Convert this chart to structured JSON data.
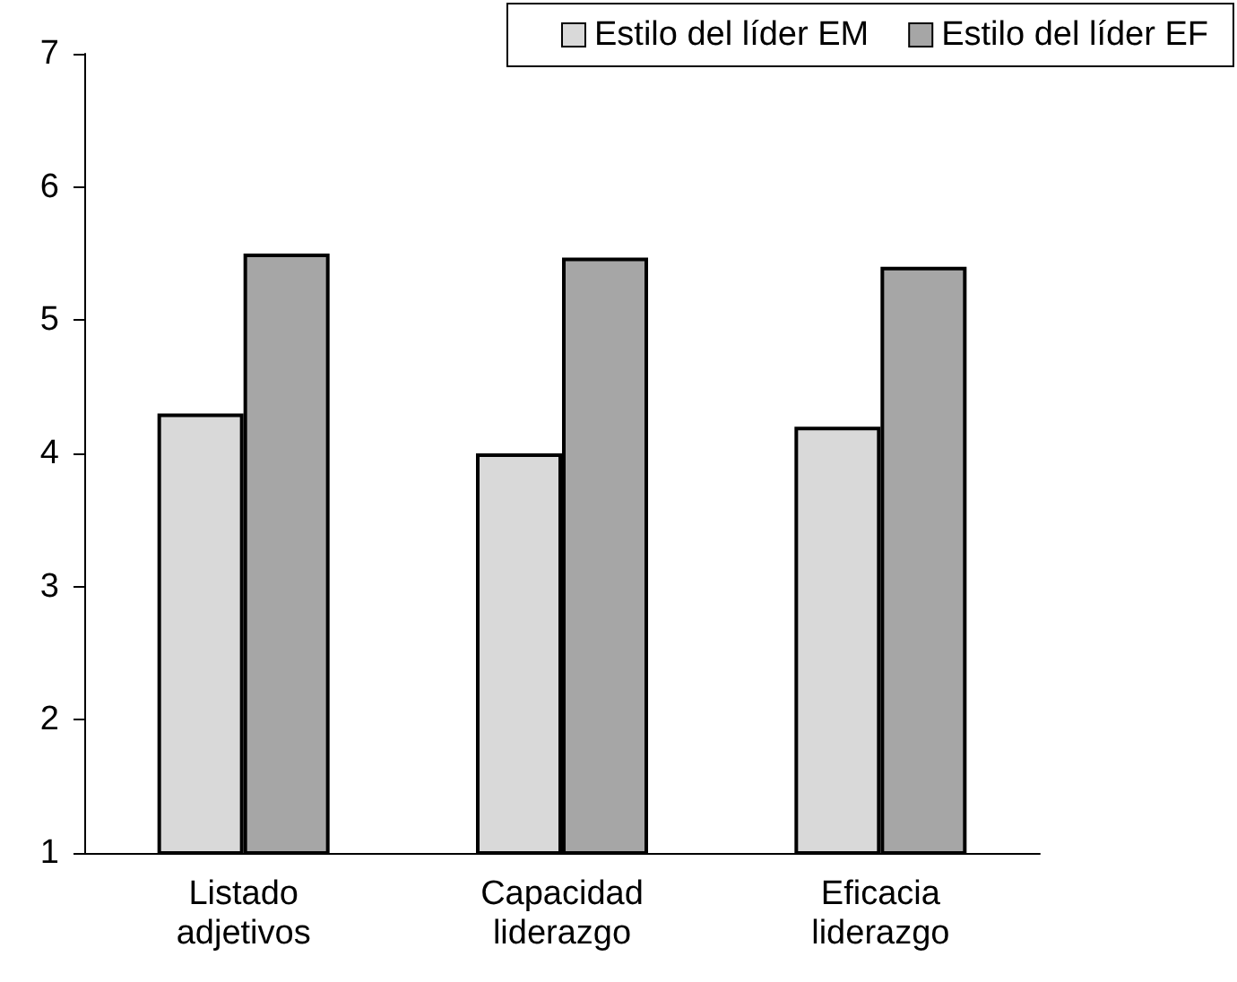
{
  "chart_data": {
    "type": "bar",
    "categories": [
      "Listado adjetivos",
      "Capacidad liderazgo",
      "Eficacia liderazgo"
    ],
    "series": [
      {
        "name": "Estilo del líder EM",
        "color": "#d9d9d9",
        "values": [
          4.3,
          4.0,
          4.2
        ]
      },
      {
        "name": "Estilo del líder EF",
        "color": "#a6a6a6",
        "values": [
          5.5,
          5.47,
          5.4
        ]
      }
    ],
    "ylim": [
      1,
      7
    ],
    "yticks": [
      1,
      2,
      3,
      4,
      5,
      6,
      7
    ],
    "grid": false,
    "legend": "top right"
  }
}
